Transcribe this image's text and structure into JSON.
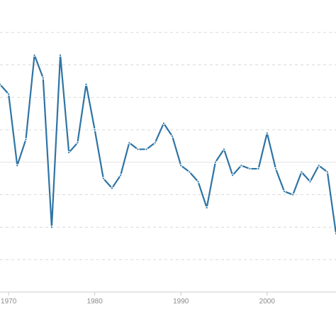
{
  "chart_data": {
    "type": "line",
    "title": "",
    "xlabel": "",
    "ylabel": "",
    "xlim": [
      1969,
      2008
    ],
    "ylim": [
      0,
      9
    ],
    "x_ticks": [
      1970,
      1980,
      1990,
      2000
    ],
    "y_gridlines": [
      1,
      2,
      3,
      4,
      5,
      6,
      7,
      8
    ],
    "y_solid_gridline": 4,
    "grid": true,
    "legend": "none",
    "series_color": "#2e74a4",
    "series": [
      {
        "x": [
          1969,
          1970,
          1971,
          1972,
          1973,
          1974,
          1975,
          1976,
          1977,
          1978,
          1979,
          1980,
          1981,
          1982,
          1983,
          1984,
          1985,
          1986,
          1987,
          1988,
          1989,
          1990,
          1991,
          1992,
          1993,
          1994,
          1995,
          1996,
          1997,
          1998,
          1999,
          2000,
          2001,
          2002,
          2003,
          2004,
          2005,
          2006,
          2007,
          2008
        ],
        "values": [
          6.4,
          6.1,
          3.9,
          4.7,
          7.3,
          6.6,
          2.0,
          7.3,
          4.3,
          4.6,
          6.4,
          5.0,
          3.5,
          3.2,
          3.6,
          4.6,
          4.4,
          4.4,
          4.6,
          5.2,
          4.8,
          3.9,
          3.7,
          3.4,
          2.6,
          4.0,
          4.4,
          3.6,
          3.9,
          3.8,
          3.8,
          4.9,
          3.8,
          3.1,
          3.0,
          3.7,
          3.4,
          3.9,
          3.7,
          1.8
        ]
      }
    ]
  }
}
